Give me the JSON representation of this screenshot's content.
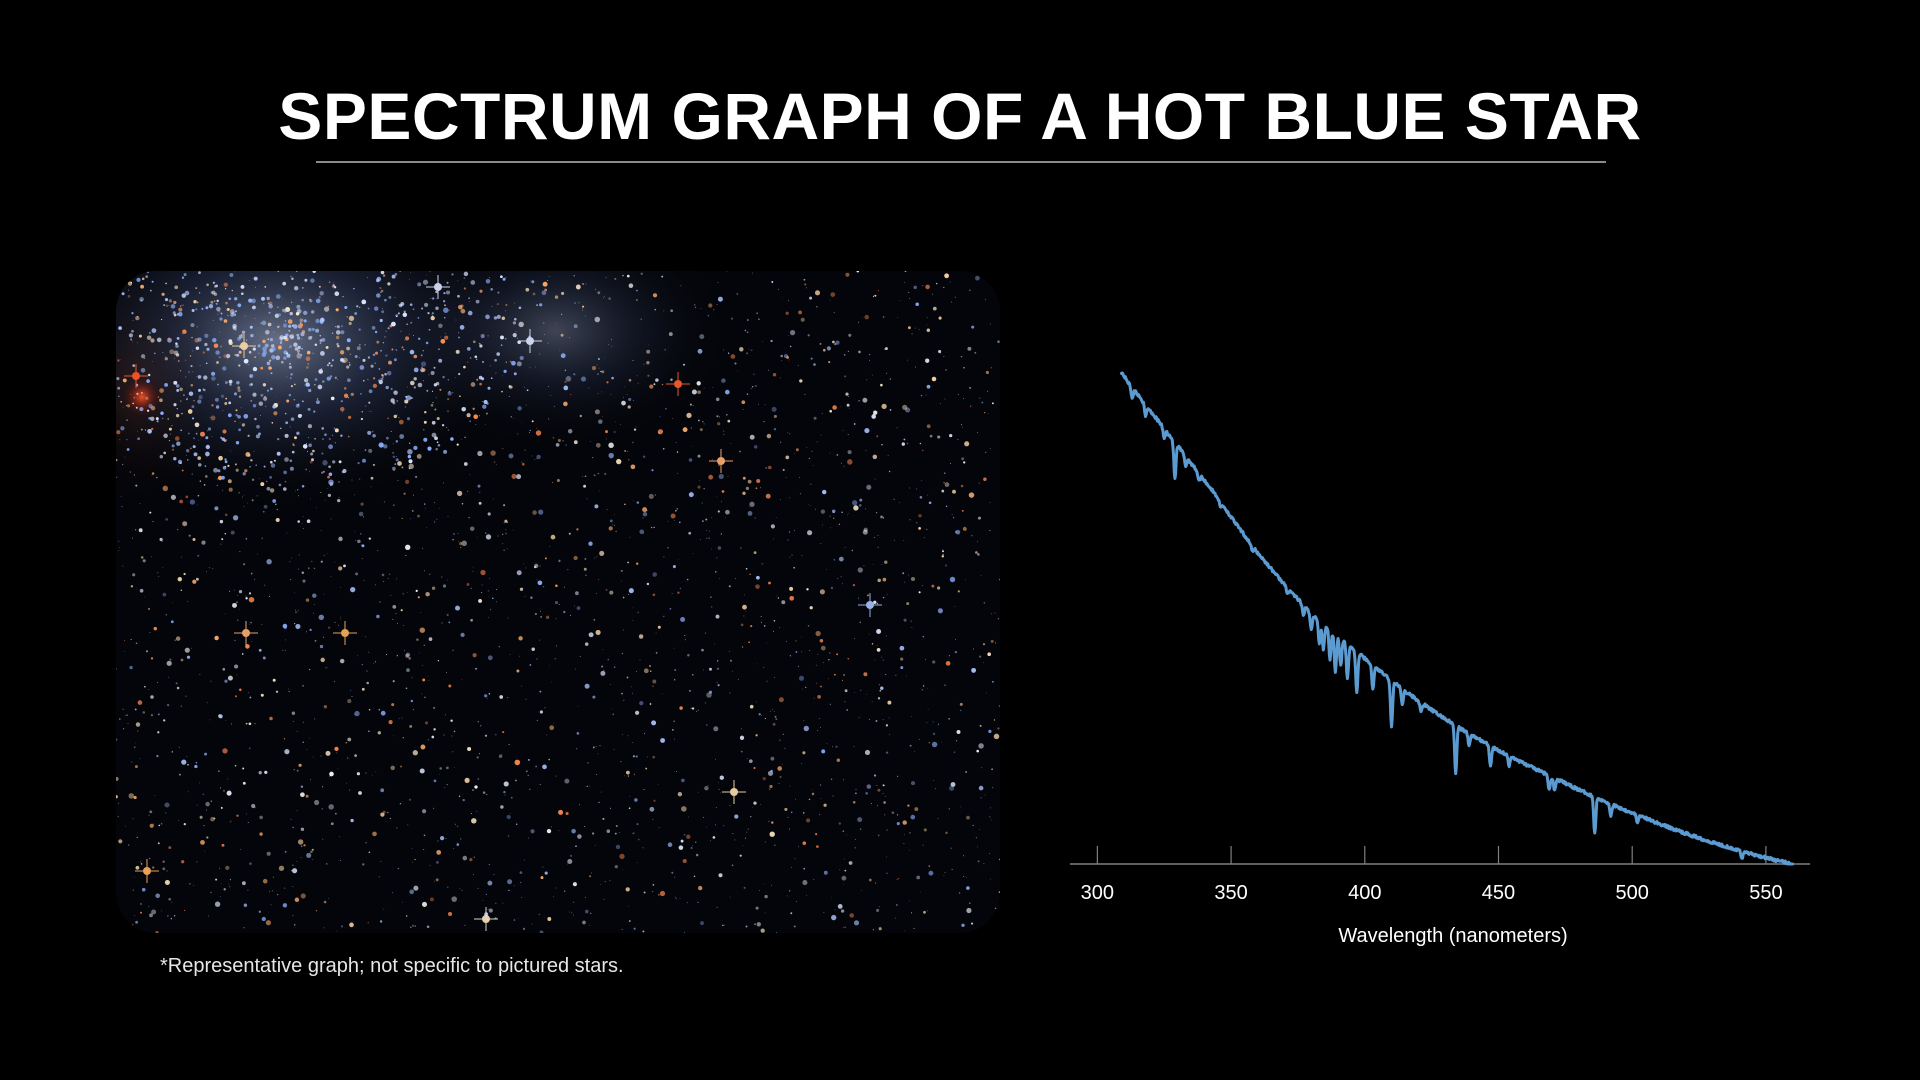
{
  "slide": {
    "title": "SPECTRUM GRAPH OF A HOT BLUE STAR",
    "footnote": "*Representative graph; not specific to pictured stars."
  },
  "colors": {
    "background": "#000000",
    "spectrum_line": "#5b9bd1",
    "axis": "#7f7f7f",
    "title_rule": "#8a8a8a"
  },
  "chart_data": {
    "type": "line",
    "title": "",
    "xlabel": "Wavelength (nanometers)",
    "ylabel": "",
    "xlim": [
      295,
      562
    ],
    "ylim": [
      0,
      1
    ],
    "xticks": [
      300,
      350,
      400,
      450,
      500,
      550
    ],
    "grid": false,
    "legend": "none",
    "series": [
      {
        "color": "#5b9bd1",
        "continuum": {
          "x": [
            309,
            312,
            315,
            320,
            325,
            330,
            335,
            340,
            345,
            350,
            355,
            360,
            365,
            370,
            375,
            380,
            385,
            390,
            395,
            400,
            405,
            410,
            415,
            420,
            425,
            430,
            435,
            440,
            445,
            450,
            455,
            460,
            465,
            470,
            475,
            480,
            485,
            490,
            495,
            500,
            505,
            510,
            515,
            520,
            525,
            530,
            535,
            540,
            545,
            550,
            555,
            560
          ],
          "y": [
            1.0,
            0.975,
            0.955,
            0.92,
            0.885,
            0.85,
            0.815,
            0.78,
            0.745,
            0.705,
            0.668,
            0.632,
            0.6,
            0.568,
            0.538,
            0.508,
            0.485,
            0.462,
            0.44,
            0.418,
            0.395,
            0.373,
            0.352,
            0.332,
            0.313,
            0.295,
            0.278,
            0.262,
            0.246,
            0.231,
            0.217,
            0.203,
            0.19,
            0.177,
            0.164,
            0.151,
            0.139,
            0.127,
            0.115,
            0.104,
            0.093,
            0.082,
            0.072,
            0.062,
            0.053,
            0.044,
            0.036,
            0.028,
            0.02,
            0.013,
            0.006,
            0.0
          ]
        },
        "absorption_lines": [
          {
            "x": 313,
            "depth": 0.02
          },
          {
            "x": 318,
            "depth": 0.025
          },
          {
            "x": 325,
            "depth": 0.02
          },
          {
            "x": 329,
            "depth": 0.075
          },
          {
            "x": 333,
            "depth": 0.02
          },
          {
            "x": 338,
            "depth": 0.015
          },
          {
            "x": 346,
            "depth": 0.012
          },
          {
            "x": 358,
            "depth": 0.012
          },
          {
            "x": 371,
            "depth": 0.012
          },
          {
            "x": 377,
            "depth": 0.02
          },
          {
            "x": 380,
            "depth": 0.03
          },
          {
            "x": 383,
            "depth": 0.045
          },
          {
            "x": 384.5,
            "depth": 0.05
          },
          {
            "x": 387,
            "depth": 0.06
          },
          {
            "x": 389,
            "depth": 0.075
          },
          {
            "x": 391,
            "depth": 0.055
          },
          {
            "x": 393.5,
            "depth": 0.07
          },
          {
            "x": 397,
            "depth": 0.085
          },
          {
            "x": 403,
            "depth": 0.05
          },
          {
            "x": 410,
            "depth": 0.095
          },
          {
            "x": 414,
            "depth": 0.03
          },
          {
            "x": 421,
            "depth": 0.02
          },
          {
            "x": 434,
            "depth": 0.1
          },
          {
            "x": 439,
            "depth": 0.025
          },
          {
            "x": 447,
            "depth": 0.04
          },
          {
            "x": 454,
            "depth": 0.02
          },
          {
            "x": 469,
            "depth": 0.03
          },
          {
            "x": 471,
            "depth": 0.025
          },
          {
            "x": 486,
            "depth": 0.075
          },
          {
            "x": 492,
            "depth": 0.025
          },
          {
            "x": 502,
            "depth": 0.015
          },
          {
            "x": 541,
            "depth": 0.015
          }
        ]
      }
    ]
  }
}
